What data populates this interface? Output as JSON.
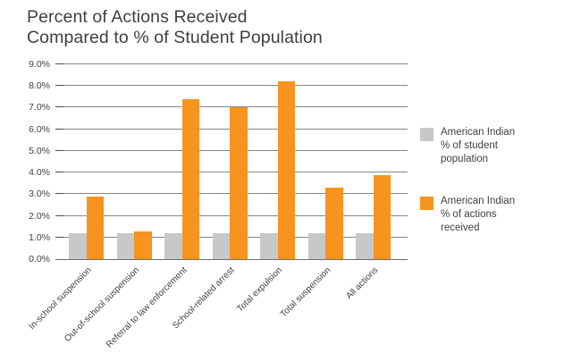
{
  "title": {
    "line1": "Percent of Actions Received",
    "line2": "Compared to % of Student Population"
  },
  "colors": {
    "population_series": "#C7C8CA",
    "actions_series": "#F7941E",
    "gridline": "#848689",
    "text": "#414042"
  },
  "legend": {
    "items": [
      {
        "label": "American Indian\n% of student\npopulation",
        "color": "#C7C8CA"
      },
      {
        "label": "American Indian\n% of actions\nreceived",
        "color": "#F7941E"
      }
    ]
  },
  "chart_data": {
    "type": "bar",
    "title": "Percent of Actions Received Compared to % of Student Population",
    "categories": [
      "In-school suspension",
      "Out-of-school suspension",
      "Referral to law enforcement",
      "School-related arrest",
      "Total expulsion",
      "Total suspension",
      "All actions"
    ],
    "series": [
      {
        "name": "American Indian % of student population",
        "color": "#C7C8CA",
        "values": [
          1.2,
          1.2,
          1.2,
          1.2,
          1.2,
          1.2,
          1.2
        ]
      },
      {
        "name": "American Indian % of actions received",
        "color": "#F7941E",
        "values": [
          2.9,
          1.3,
          7.4,
          7.0,
          8.2,
          3.3,
          3.9
        ]
      }
    ],
    "y_tick_labels": [
      "0.0%",
      "1.0%",
      "2.0%",
      "3.0%",
      "4.0%",
      "5.0%",
      "6.0%",
      "7.0%",
      "8.0%",
      "9.0%"
    ],
    "ylim": [
      0,
      9
    ],
    "xlabel": "",
    "ylabel": "",
    "grid": true,
    "legend_position": "right"
  }
}
